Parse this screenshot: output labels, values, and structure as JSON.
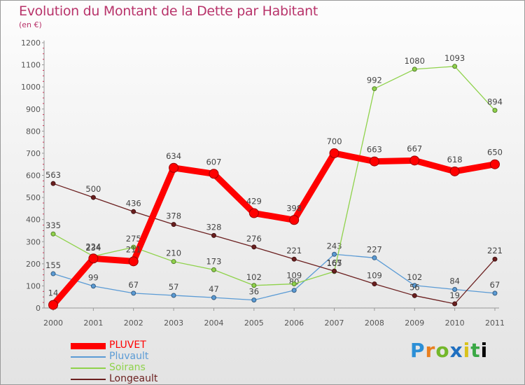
{
  "header": {
    "title": "Evolution du Montant de la Dette par Habitant",
    "subtitle": "(en €)"
  },
  "logo": {
    "text": "Proxiti"
  },
  "chart_data": {
    "type": "line",
    "title": "Evolution du Montant de la Dette par Habitant",
    "subtitle": "(en €)",
    "x": [
      "2000",
      "2001",
      "2002",
      "2003",
      "2004",
      "2005",
      "2006",
      "2007",
      "2008",
      "2009",
      "2010",
      "2011"
    ],
    "yticks": [
      0,
      100,
      200,
      300,
      400,
      500,
      600,
      700,
      800,
      900,
      1000,
      1100,
      1200
    ],
    "ylim": [
      0,
      1200
    ],
    "grid": false,
    "legend_position": "bottom-left",
    "series": [
      {
        "name": "PLUVET",
        "color": "#ff0000",
        "values": [
          14,
          224,
          211,
          634,
          607,
          429,
          398,
          700,
          663,
          667,
          618,
          650
        ]
      },
      {
        "name": "Pluvault",
        "color": "#5b9bd5",
        "values": [
          155,
          99,
          67,
          57,
          47,
          36,
          80,
          243,
          227,
          102,
          84,
          67
        ]
      },
      {
        "name": "Soirans",
        "color": "#8fd24b",
        "values": [
          335,
          234,
          275,
          210,
          173,
          102,
          109,
          165,
          992,
          1080,
          1093,
          894
        ]
      },
      {
        "name": "Longeault",
        "color": "#6b1f1f",
        "values": [
          563,
          500,
          436,
          378,
          328,
          276,
          221,
          167,
          109,
          56,
          19,
          221
        ]
      }
    ]
  }
}
